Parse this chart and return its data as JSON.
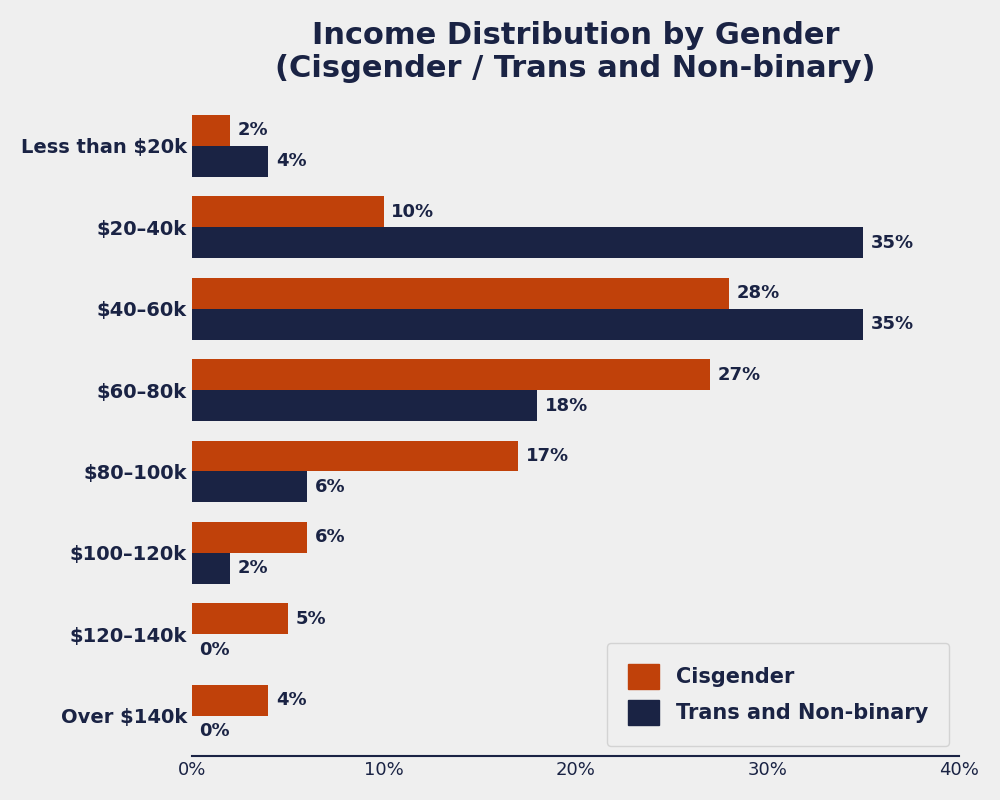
{
  "title": "Income Distribution by Gender\n(Cisgender / Trans and Non-binary)",
  "categories": [
    "Less than $20k",
    "$20–40k",
    "$40–60k",
    "$60–80k",
    "$80–100k",
    "$100–120k",
    "$120–140k",
    "Over $140k"
  ],
  "cisgender": [
    2,
    10,
    28,
    27,
    17,
    6,
    5,
    4
  ],
  "trans": [
    4,
    35,
    35,
    18,
    6,
    2,
    0,
    0
  ],
  "cisgender_color": "#c0410a",
  "trans_color": "#1a2344",
  "background_color": "#efefef",
  "title_color": "#1a2344",
  "label_color": "#1a2344",
  "bar_height": 0.38,
  "xlim": [
    0,
    40
  ],
  "xticks": [
    0,
    10,
    20,
    30,
    40
  ],
  "xtick_labels": [
    "0%",
    "10%",
    "20%",
    "30%",
    "40%"
  ],
  "title_fontsize": 22,
  "label_fontsize": 14,
  "tick_fontsize": 13,
  "value_fontsize": 13,
  "legend_fontsize": 15,
  "legend_entries": [
    "Cisgender",
    "Trans and Non-binary"
  ]
}
